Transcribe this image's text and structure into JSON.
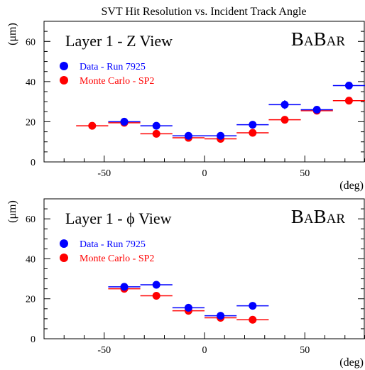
{
  "figure": {
    "title": "SVT Hit Resolution vs. Incident Track Angle"
  },
  "colors": {
    "data": "#0000ff",
    "mc": "#ff0000",
    "axis": "#000000",
    "legend_text_data": "#0000ff",
    "legend_text_mc": "#ff0000"
  },
  "chart_data": [
    {
      "type": "scatter",
      "panel_title": "Layer 1 - Z View",
      "logo": "BABAR",
      "xlabel": "(deg)",
      "ylabel": "(μm)",
      "xlim": [
        -80,
        80
      ],
      "ylim": [
        0,
        70
      ],
      "xticks": [
        -50,
        0,
        50
      ],
      "yticks": [
        0,
        20,
        40,
        60
      ],
      "grid": false,
      "legend_position": "top-left",
      "series": [
        {
          "name": "Data - Run 7925",
          "color": "#0000ff",
          "points": [
            {
              "x": -40,
              "xerr": 8,
              "y": 20.0,
              "yerr": 0.8
            },
            {
              "x": -24,
              "xerr": 8,
              "y": 18.0,
              "yerr": 0.8
            },
            {
              "x": -8,
              "xerr": 8,
              "y": 13.0,
              "yerr": 0.6
            },
            {
              "x": 8,
              "xerr": 8,
              "y": 13.0,
              "yerr": 0.6
            },
            {
              "x": 24,
              "xerr": 8,
              "y": 18.5,
              "yerr": 0.8
            },
            {
              "x": 40,
              "xerr": 8,
              "y": 28.5,
              "yerr": 2.2
            },
            {
              "x": 56,
              "xerr": 8,
              "y": 26.0,
              "yerr": 1.0
            },
            {
              "x": 72,
              "xerr": 8,
              "y": 38.0,
              "yerr": 1.0
            }
          ]
        },
        {
          "name": "Monte Carlo - SP2",
          "color": "#ff0000",
          "points": [
            {
              "x": -56,
              "xerr": 8,
              "y": 18.0,
              "yerr": 0.5
            },
            {
              "x": -40,
              "xerr": 8,
              "y": 19.5,
              "yerr": 0.5
            },
            {
              "x": -24,
              "xerr": 8,
              "y": 14.0,
              "yerr": 0.5
            },
            {
              "x": -8,
              "xerr": 8,
              "y": 12.0,
              "yerr": 0.5
            },
            {
              "x": 8,
              "xerr": 8,
              "y": 11.5,
              "yerr": 0.5
            },
            {
              "x": 24,
              "xerr": 8,
              "y": 14.5,
              "yerr": 0.5
            },
            {
              "x": 40,
              "xerr": 8,
              "y": 21.0,
              "yerr": 0.5
            },
            {
              "x": 56,
              "xerr": 8,
              "y": 25.5,
              "yerr": 0.5
            },
            {
              "x": 72,
              "xerr": 8,
              "y": 30.5,
              "yerr": 0.5
            }
          ]
        }
      ]
    },
    {
      "type": "scatter",
      "panel_title": "Layer 1 - ϕ View",
      "logo": "BABAR",
      "xlabel": "(deg)",
      "ylabel": "(μm)",
      "xlim": [
        -80,
        80
      ],
      "ylim": [
        0,
        70
      ],
      "xticks": [
        -50,
        0,
        50
      ],
      "yticks": [
        0,
        20,
        40,
        60
      ],
      "grid": false,
      "legend_position": "top-left",
      "series": [
        {
          "name": "Data - Run 7925",
          "color": "#0000ff",
          "points": [
            {
              "x": -40,
              "xerr": 8,
              "y": 26.0,
              "yerr": 0.8
            },
            {
              "x": -24,
              "xerr": 8,
              "y": 27.0,
              "yerr": 0.8
            },
            {
              "x": -8,
              "xerr": 8,
              "y": 15.5,
              "yerr": 0.6
            },
            {
              "x": 8,
              "xerr": 8,
              "y": 11.5,
              "yerr": 0.6
            },
            {
              "x": 24,
              "xerr": 8,
              "y": 16.5,
              "yerr": 0.6
            }
          ]
        },
        {
          "name": "Monte Carlo - SP2",
          "color": "#ff0000",
          "points": [
            {
              "x": -40,
              "xerr": 8,
              "y": 25.0,
              "yerr": 0.5
            },
            {
              "x": -24,
              "xerr": 8,
              "y": 21.5,
              "yerr": 0.5
            },
            {
              "x": -8,
              "xerr": 8,
              "y": 14.0,
              "yerr": 0.5
            },
            {
              "x": 8,
              "xerr": 8,
              "y": 10.5,
              "yerr": 0.5
            },
            {
              "x": 24,
              "xerr": 8,
              "y": 9.5,
              "yerr": 0.5
            }
          ]
        }
      ]
    }
  ]
}
